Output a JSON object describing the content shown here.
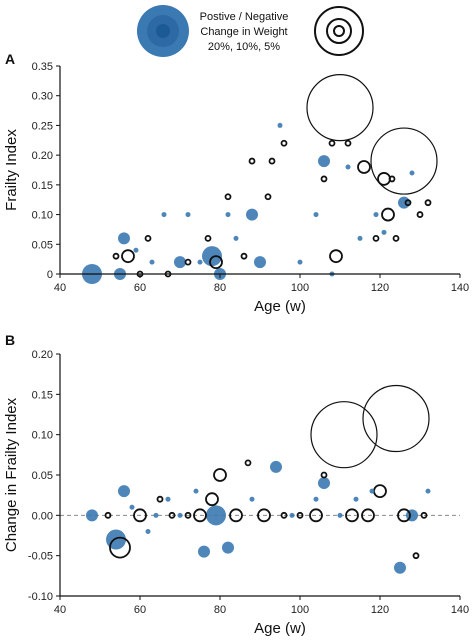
{
  "legend": {
    "line1": "Postive / Negative",
    "line2": "Change in Weight",
    "line3": "20%, 10%, 5%"
  },
  "panels": [
    {
      "letter": "A"
    },
    {
      "letter": "B"
    }
  ],
  "colors": {
    "positive": "#3b79b2",
    "positive_inner": "#1c5a96",
    "negative": "#111111",
    "zero_line": "#8a8a8a"
  },
  "chart_data": [
    {
      "type": "scatter",
      "xlabel": "Age (w)",
      "ylabel": "Frailty Index",
      "xlim": [
        40,
        140
      ],
      "ylim": [
        0,
        0.35
      ],
      "xticks": [
        40,
        60,
        80,
        100,
        120,
        140
      ],
      "xtick_labels": [
        "40",
        "60",
        "80",
        "100",
        "120",
        "140"
      ],
      "yticks": [
        0,
        0.05,
        0.1,
        0.15,
        0.2,
        0.25,
        0.3,
        0.35
      ],
      "ytick_labels": [
        "0",
        "0.05",
        "0.10",
        "0.15",
        "0.20",
        "0.25",
        "0.30",
        "0.35"
      ],
      "size_encoding": "marker size = magnitude of weight change; filled blue = positive, open black = negative",
      "series": [
        {
          "name": "Positive change in weight",
          "points": [
            {
              "x": 48,
              "y": 0.0,
              "w": 3
            },
            {
              "x": 55,
              "y": 0.0,
              "w": 2
            },
            {
              "x": 56,
              "y": 0.06,
              "w": 2
            },
            {
              "x": 59,
              "y": 0.04,
              "w": 1
            },
            {
              "x": 63,
              "y": 0.02,
              "w": 1
            },
            {
              "x": 66,
              "y": 0.1,
              "w": 1
            },
            {
              "x": 70,
              "y": 0.02,
              "w": 2
            },
            {
              "x": 72,
              "y": 0.1,
              "w": 1
            },
            {
              "x": 75,
              "y": 0.02,
              "w": 1
            },
            {
              "x": 78,
              "y": 0.03,
              "w": 3
            },
            {
              "x": 80,
              "y": 0.0,
              "w": 2
            },
            {
              "x": 82,
              "y": 0.1,
              "w": 1
            },
            {
              "x": 84,
              "y": 0.06,
              "w": 1
            },
            {
              "x": 88,
              "y": 0.1,
              "w": 2
            },
            {
              "x": 90,
              "y": 0.02,
              "w": 2
            },
            {
              "x": 95,
              "y": 0.25,
              "w": 1
            },
            {
              "x": 100,
              "y": 0.02,
              "w": 1
            },
            {
              "x": 104,
              "y": 0.1,
              "w": 1
            },
            {
              "x": 106,
              "y": 0.19,
              "w": 2
            },
            {
              "x": 108,
              "y": 0.0,
              "w": 1
            },
            {
              "x": 112,
              "y": 0.18,
              "w": 1
            },
            {
              "x": 115,
              "y": 0.06,
              "w": 1
            },
            {
              "x": 119,
              "y": 0.1,
              "w": 1
            },
            {
              "x": 121,
              "y": 0.07,
              "w": 1
            },
            {
              "x": 126,
              "y": 0.12,
              "w": 2
            },
            {
              "x": 128,
              "y": 0.17,
              "w": 1
            }
          ]
        },
        {
          "name": "Negative change in weight",
          "points": [
            {
              "x": 54,
              "y": 0.03,
              "w": 1
            },
            {
              "x": 57,
              "y": 0.03,
              "w": 2
            },
            {
              "x": 60,
              "y": 0.0,
              "w": 1
            },
            {
              "x": 62,
              "y": 0.06,
              "w": 1
            },
            {
              "x": 67,
              "y": 0.0,
              "w": 1
            },
            {
              "x": 72,
              "y": 0.02,
              "w": 1
            },
            {
              "x": 77,
              "y": 0.06,
              "w": 1
            },
            {
              "x": 79,
              "y": 0.02,
              "w": 2
            },
            {
              "x": 82,
              "y": 0.13,
              "w": 1
            },
            {
              "x": 86,
              "y": 0.03,
              "w": 1
            },
            {
              "x": 88,
              "y": 0.19,
              "w": 1
            },
            {
              "x": 92,
              "y": 0.13,
              "w": 1
            },
            {
              "x": 93,
              "y": 0.19,
              "w": 1
            },
            {
              "x": 96,
              "y": 0.22,
              "w": 1
            },
            {
              "x": 106,
              "y": 0.16,
              "w": 1
            },
            {
              "x": 108,
              "y": 0.22,
              "w": 1
            },
            {
              "x": 109,
              "y": 0.03,
              "w": 2
            },
            {
              "x": 110,
              "y": 0.28,
              "w": 4
            },
            {
              "x": 112,
              "y": 0.22,
              "w": 1
            },
            {
              "x": 116,
              "y": 0.18,
              "w": 2
            },
            {
              "x": 119,
              "y": 0.06,
              "w": 1
            },
            {
              "x": 121,
              "y": 0.16,
              "w": 2
            },
            {
              "x": 122,
              "y": 0.1,
              "w": 2
            },
            {
              "x": 123,
              "y": 0.16,
              "w": 1
            },
            {
              "x": 124,
              "y": 0.06,
              "w": 1
            },
            {
              "x": 126,
              "y": 0.19,
              "w": 4
            },
            {
              "x": 127,
              "y": 0.12,
              "w": 1
            },
            {
              "x": 130,
              "y": 0.1,
              "w": 1
            },
            {
              "x": 132,
              "y": 0.12,
              "w": 1
            }
          ]
        }
      ]
    },
    {
      "type": "scatter",
      "xlabel": "Age (w)",
      "ylabel": "Change in Frailty Index",
      "xlim": [
        40,
        140
      ],
      "ylim": [
        -0.1,
        0.2
      ],
      "xticks": [
        40,
        60,
        80,
        100,
        120,
        140
      ],
      "xtick_labels": [
        "40",
        "60",
        "80",
        "100",
        "120",
        "140"
      ],
      "yticks": [
        -0.1,
        -0.05,
        0,
        0.05,
        0.1,
        0.15,
        0.2
      ],
      "ytick_labels": [
        "-0.10",
        "-0.05",
        "0.00",
        "0.05",
        "0.10",
        "0.15",
        "0.20"
      ],
      "reference_line_y": 0,
      "series": [
        {
          "name": "Positive change in weight",
          "points": [
            {
              "x": 48,
              "y": 0.0,
              "w": 2
            },
            {
              "x": 54,
              "y": -0.03,
              "w": 3
            },
            {
              "x": 56,
              "y": 0.03,
              "w": 2
            },
            {
              "x": 58,
              "y": 0.01,
              "w": 1
            },
            {
              "x": 62,
              "y": -0.02,
              "w": 1
            },
            {
              "x": 64,
              "y": 0.0,
              "w": 1
            },
            {
              "x": 67,
              "y": 0.02,
              "w": 1
            },
            {
              "x": 70,
              "y": 0.0,
              "w": 1
            },
            {
              "x": 74,
              "y": 0.03,
              "w": 1
            },
            {
              "x": 76,
              "y": -0.045,
              "w": 2
            },
            {
              "x": 79,
              "y": 0.0,
              "w": 3
            },
            {
              "x": 82,
              "y": -0.04,
              "w": 2
            },
            {
              "x": 88,
              "y": 0.02,
              "w": 1
            },
            {
              "x": 94,
              "y": 0.06,
              "w": 2
            },
            {
              "x": 98,
              "y": 0.0,
              "w": 1
            },
            {
              "x": 104,
              "y": 0.02,
              "w": 1
            },
            {
              "x": 106,
              "y": 0.04,
              "w": 2
            },
            {
              "x": 110,
              "y": 0.0,
              "w": 1
            },
            {
              "x": 114,
              "y": 0.02,
              "w": 1
            },
            {
              "x": 118,
              "y": 0.03,
              "w": 1
            },
            {
              "x": 125,
              "y": -0.065,
              "w": 2
            },
            {
              "x": 128,
              "y": 0.0,
              "w": 2
            },
            {
              "x": 132,
              "y": 0.03,
              "w": 1
            }
          ]
        },
        {
          "name": "Negative change in weight",
          "points": [
            {
              "x": 52,
              "y": 0.0,
              "w": 1
            },
            {
              "x": 55,
              "y": -0.04,
              "w": 3
            },
            {
              "x": 60,
              "y": 0.0,
              "w": 2
            },
            {
              "x": 65,
              "y": 0.02,
              "w": 1
            },
            {
              "x": 68,
              "y": 0.0,
              "w": 1
            },
            {
              "x": 72,
              "y": 0.0,
              "w": 1
            },
            {
              "x": 75,
              "y": 0.0,
              "w": 2
            },
            {
              "x": 78,
              "y": 0.02,
              "w": 2
            },
            {
              "x": 80,
              "y": 0.05,
              "w": 2
            },
            {
              "x": 84,
              "y": 0.0,
              "w": 2
            },
            {
              "x": 87,
              "y": 0.065,
              "w": 1
            },
            {
              "x": 91,
              "y": 0.0,
              "w": 2
            },
            {
              "x": 96,
              "y": 0.0,
              "w": 1
            },
            {
              "x": 100,
              "y": 0.0,
              "w": 1
            },
            {
              "x": 104,
              "y": 0.0,
              "w": 2
            },
            {
              "x": 106,
              "y": 0.05,
              "w": 1
            },
            {
              "x": 111,
              "y": 0.1,
              "w": 4
            },
            {
              "x": 113,
              "y": 0.0,
              "w": 2
            },
            {
              "x": 117,
              "y": 0.0,
              "w": 2
            },
            {
              "x": 120,
              "y": 0.03,
              "w": 2
            },
            {
              "x": 124,
              "y": 0.12,
              "w": 4
            },
            {
              "x": 126,
              "y": 0.0,
              "w": 2
            },
            {
              "x": 129,
              "y": -0.05,
              "w": 1
            },
            {
              "x": 131,
              "y": 0.0,
              "w": 1
            }
          ]
        }
      ]
    }
  ]
}
